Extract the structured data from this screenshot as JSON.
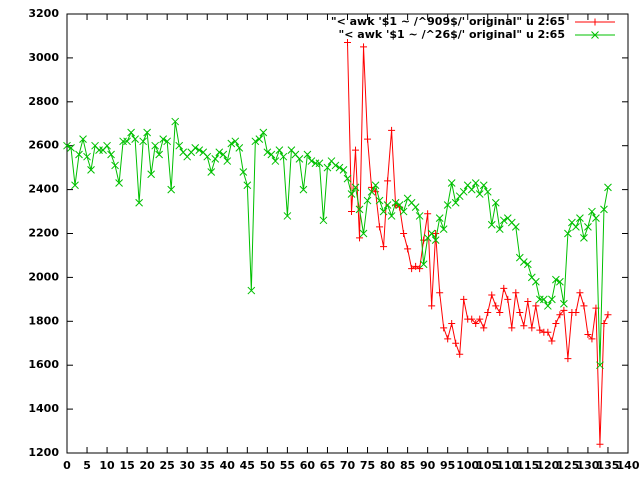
{
  "chart_data": {
    "type": "line",
    "x": [
      0,
      1,
      2,
      3,
      4,
      5,
      6,
      7,
      8,
      9,
      10,
      11,
      12,
      13,
      14,
      15,
      16,
      17,
      18,
      19,
      20,
      21,
      22,
      23,
      24,
      25,
      26,
      27,
      28,
      29,
      30,
      31,
      32,
      33,
      34,
      35,
      36,
      37,
      38,
      39,
      40,
      41,
      42,
      43,
      44,
      45,
      46,
      47,
      48,
      49,
      50,
      51,
      52,
      53,
      54,
      55,
      56,
      57,
      58,
      59,
      60,
      61,
      62,
      63,
      64,
      65,
      66,
      67,
      68,
      69,
      70,
      71,
      72,
      73,
      74,
      75,
      76,
      77,
      78,
      79,
      80,
      81,
      82,
      83,
      84,
      85,
      86,
      87,
      88,
      89,
      90,
      91,
      92,
      93,
      94,
      95,
      96,
      97,
      98,
      99,
      100,
      101,
      102,
      103,
      104,
      105,
      106,
      107,
      108,
      109,
      110,
      111,
      112,
      113,
      114,
      115,
      116,
      117,
      118,
      119,
      120,
      121,
      122,
      123,
      124,
      125,
      126,
      127,
      128,
      129,
      130,
      131,
      132,
      133,
      134,
      135
    ],
    "series": [
      {
        "name": "\"< awk '$1 ~ /^909$/' original\" u 2:65",
        "color": "#ff0000",
        "marker": "+",
        "values": [
          null,
          null,
          null,
          null,
          null,
          null,
          null,
          null,
          null,
          null,
          null,
          null,
          null,
          null,
          null,
          null,
          null,
          null,
          null,
          null,
          null,
          null,
          null,
          null,
          null,
          null,
          null,
          null,
          null,
          null,
          null,
          null,
          null,
          null,
          null,
          null,
          null,
          null,
          null,
          null,
          null,
          null,
          null,
          null,
          null,
          null,
          null,
          null,
          null,
          null,
          null,
          null,
          null,
          null,
          null,
          null,
          null,
          null,
          null,
          null,
          null,
          null,
          null,
          null,
          null,
          null,
          null,
          null,
          null,
          null,
          3070,
          2300,
          2580,
          2180,
          3050,
          2630,
          2410,
          2390,
          2230,
          2140,
          2440,
          2670,
          2330,
          2320,
          2200,
          2130,
          2040,
          2050,
          2040,
          2170,
          2290,
          1870,
          2200,
          1930,
          1770,
          1720,
          1790,
          1700,
          1650,
          1900,
          1810,
          1810,
          1790,
          1810,
          1770,
          1840,
          1920,
          1870,
          1840,
          1950,
          1900,
          1770,
          1930,
          1840,
          1780,
          1890,
          1770,
          1870,
          1760,
          1750,
          1750,
          1710,
          1790,
          1830,
          1850,
          1630,
          1840,
          1840,
          1930,
          1870,
          1740,
          1720,
          1860,
          1240,
          1790,
          1830
        ]
      },
      {
        "name": "\"< awk '$1 ~ /^26$/' original\" u 2:65",
        "color": "#00c000",
        "marker": "x",
        "values": [
          2600,
          2590,
          2420,
          2560,
          2630,
          2550,
          2490,
          2600,
          2580,
          2580,
          2600,
          2560,
          2510,
          2430,
          2620,
          2620,
          2660,
          2630,
          2340,
          2620,
          2660,
          2470,
          2600,
          2560,
          2630,
          2620,
          2400,
          2710,
          2600,
          2570,
          2550,
          2570,
          2590,
          2580,
          2570,
          2550,
          2480,
          2540,
          2570,
          2560,
          2530,
          2610,
          2620,
          2590,
          2480,
          2420,
          1940,
          2620,
          2630,
          2660,
          2570,
          2560,
          2530,
          2580,
          2550,
          2280,
          2580,
          2560,
          2540,
          2400,
          2560,
          2530,
          2520,
          2520,
          2260,
          2500,
          2530,
          2510,
          2500,
          2490,
          2450,
          2380,
          2410,
          2310,
          2200,
          2350,
          2390,
          2420,
          2350,
          2300,
          2330,
          2280,
          2340,
          2330,
          2300,
          2360,
          2340,
          2320,
          2280,
          2060,
          2180,
          2200,
          2170,
          2270,
          2220,
          2330,
          2430,
          2340,
          2370,
          2390,
          2420,
          2400,
          2430,
          2380,
          2420,
          2390,
          2240,
          2340,
          2220,
          2260,
          2270,
          2250,
          2230,
          2090,
          2070,
          2060,
          2000,
          1980,
          1900,
          1900,
          1870,
          1900,
          1990,
          1980,
          1880,
          2200,
          2250,
          2230,
          2270,
          2180,
          2230,
          2300,
          2270,
          1600,
          2310,
          2410
        ]
      }
    ],
    "xlim": [
      0,
      140
    ],
    "xticks": [
      0,
      5,
      10,
      15,
      20,
      25,
      30,
      35,
      40,
      45,
      50,
      55,
      60,
      65,
      70,
      75,
      80,
      85,
      90,
      95,
      100,
      105,
      110,
      115,
      120,
      125,
      130,
      135,
      140
    ],
    "ylim": [
      1200,
      3200
    ],
    "yticks": [
      1200,
      1400,
      1600,
      1800,
      2000,
      2200,
      2400,
      2600,
      2800,
      3000,
      3200
    ],
    "grid": false,
    "legend": "top-right"
  }
}
